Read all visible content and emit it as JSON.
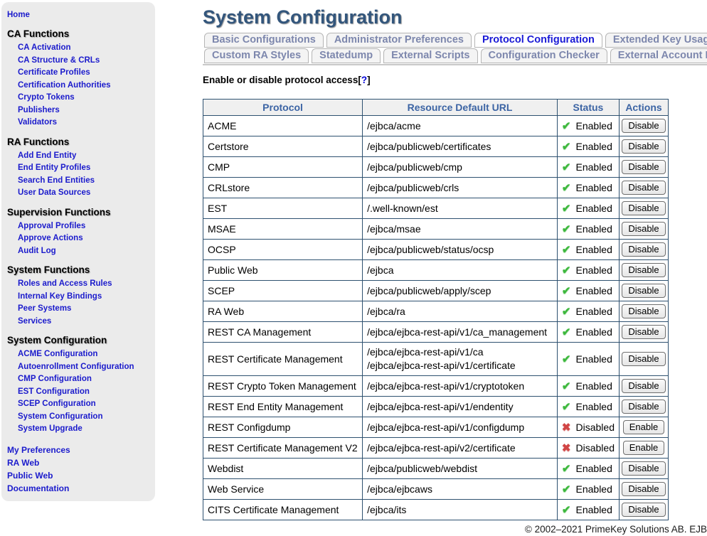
{
  "page_title": "System Configuration",
  "sidebar": {
    "home": "Home",
    "sections": [
      {
        "title": "CA Functions",
        "items": [
          "CA Activation",
          "CA Structure & CRLs",
          "Certificate Profiles",
          "Certification Authorities",
          "Crypto Tokens",
          "Publishers",
          "Validators"
        ]
      },
      {
        "title": "RA Functions",
        "items": [
          "Add End Entity",
          "End Entity Profiles",
          "Search End Entities",
          "User Data Sources"
        ]
      },
      {
        "title": "Supervision Functions",
        "items": [
          "Approval Profiles",
          "Approve Actions",
          "Audit Log"
        ]
      },
      {
        "title": "System Functions",
        "items": [
          "Roles and Access Rules",
          "Internal Key Bindings",
          "Peer Systems",
          "Services"
        ]
      },
      {
        "title": "System Configuration",
        "items": [
          "ACME Configuration",
          "Autoenrollment Configuration",
          "CMP Configuration",
          "EST Configuration",
          "SCEP Configuration",
          "System Configuration",
          "System Upgrade"
        ]
      }
    ],
    "footer_links": [
      "My Preferences",
      "RA Web",
      "Public Web",
      "Documentation"
    ]
  },
  "tabs": {
    "rows": [
      [
        {
          "label": "Basic Configurations",
          "active": false
        },
        {
          "label": "Administrator Preferences",
          "active": false
        },
        {
          "label": "Protocol Configuration",
          "active": true
        },
        {
          "label": "Extended Key Usages",
          "active": false
        }
      ],
      [
        {
          "label": "Custom RA Styles",
          "active": false
        },
        {
          "label": "Statedump",
          "active": false
        },
        {
          "label": "External Scripts",
          "active": false
        },
        {
          "label": "Configuration Checker",
          "active": false
        },
        {
          "label": "External Account Bindings",
          "active": false
        }
      ]
    ]
  },
  "help": {
    "label": "Enable or disable protocol access",
    "open_bracket": "[",
    "question_mark": "?",
    "close_bracket": "]"
  },
  "table": {
    "headers": [
      "Protocol",
      "Resource Default URL",
      "Status",
      "Actions"
    ],
    "status_icons": {
      "enabled": "check-icon",
      "disabled": "cross-icon"
    },
    "icon_glyphs": {
      "enabled": "✔",
      "disabled": "✖"
    },
    "rows": [
      {
        "protocol": "ACME",
        "urls": [
          "/ejbca/acme"
        ],
        "status": "Enabled",
        "action": "Disable"
      },
      {
        "protocol": "Certstore",
        "urls": [
          "/ejbca/publicweb/certificates"
        ],
        "status": "Enabled",
        "action": "Disable"
      },
      {
        "protocol": "CMP",
        "urls": [
          "/ejbca/publicweb/cmp"
        ],
        "status": "Enabled",
        "action": "Disable"
      },
      {
        "protocol": "CRLstore",
        "urls": [
          "/ejbca/publicweb/crls"
        ],
        "status": "Enabled",
        "action": "Disable"
      },
      {
        "protocol": "EST",
        "urls": [
          "/.well-known/est"
        ],
        "status": "Enabled",
        "action": "Disable"
      },
      {
        "protocol": "MSAE",
        "urls": [
          "/ejbca/msae"
        ],
        "status": "Enabled",
        "action": "Disable"
      },
      {
        "protocol": "OCSP",
        "urls": [
          "/ejbca/publicweb/status/ocsp"
        ],
        "status": "Enabled",
        "action": "Disable"
      },
      {
        "protocol": "Public Web",
        "urls": [
          "/ejbca"
        ],
        "status": "Enabled",
        "action": "Disable"
      },
      {
        "protocol": "SCEP",
        "urls": [
          "/ejbca/publicweb/apply/scep"
        ],
        "status": "Enabled",
        "action": "Disable"
      },
      {
        "protocol": "RA Web",
        "urls": [
          "/ejbca/ra"
        ],
        "status": "Enabled",
        "action": "Disable"
      },
      {
        "protocol": "REST CA Management",
        "urls": [
          "/ejbca/ejbca-rest-api/v1/ca_management"
        ],
        "status": "Enabled",
        "action": "Disable"
      },
      {
        "protocol": "REST Certificate Management",
        "urls": [
          "/ejbca/ejbca-rest-api/v1/ca",
          "/ejbca/ejbca-rest-api/v1/certificate"
        ],
        "status": "Enabled",
        "action": "Disable"
      },
      {
        "protocol": "REST Crypto Token Management",
        "urls": [
          "/ejbca/ejbca-rest-api/v1/cryptotoken"
        ],
        "status": "Enabled",
        "action": "Disable"
      },
      {
        "protocol": "REST End Entity Management",
        "urls": [
          "/ejbca/ejbca-rest-api/v1/endentity"
        ],
        "status": "Enabled",
        "action": "Disable"
      },
      {
        "protocol": "REST Configdump",
        "urls": [
          "/ejbca/ejbca-rest-api/v1/configdump"
        ],
        "status": "Disabled",
        "action": "Enable"
      },
      {
        "protocol": "REST Certificate Management V2",
        "urls": [
          "/ejbca/ejbca-rest-api/v2/certificate"
        ],
        "status": "Disabled",
        "action": "Enable"
      },
      {
        "protocol": "Webdist",
        "urls": [
          "/ejbca/publicweb/webdist"
        ],
        "status": "Enabled",
        "action": "Disable"
      },
      {
        "protocol": "Web Service",
        "urls": [
          "/ejbca/ejbcaws"
        ],
        "status": "Enabled",
        "action": "Disable"
      },
      {
        "protocol": "CITS Certificate Management",
        "urls": [
          "/ejbca/its"
        ],
        "status": "Enabled",
        "action": "Disable"
      }
    ]
  },
  "footer": {
    "copyright": "© 2002–2021 PrimeKey Solutions AB. EJB"
  },
  "colors": {
    "link_blue": "#1b1bcc",
    "title_blue": "#33567c",
    "active_tab_blue": "#1a1ad6",
    "inactive_tab_text": "#7d87ad",
    "table_border": "#2e5170",
    "table_header_text": "#3c64a4",
    "table_header_bg": "#f0f0f0",
    "enabled_green": "#3db83d",
    "disabled_red": "#d14545",
    "sidebar_bg": "#ebebeb"
  }
}
